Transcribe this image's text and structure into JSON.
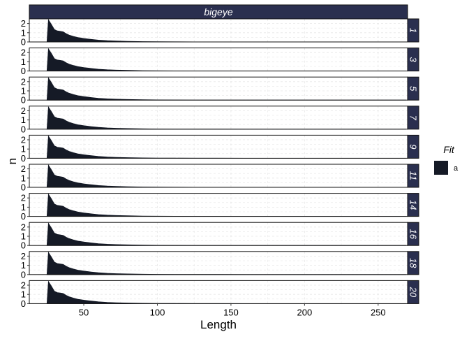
{
  "chart_data": {
    "type": "area",
    "facet_column_label": "bigeye",
    "facet_row_labels": [
      "1",
      "3",
      "5",
      "7",
      "9",
      "11",
      "14",
      "16",
      "18",
      "20"
    ],
    "xlabel": "Length",
    "ylabel": "n",
    "xlim": [
      13,
      270
    ],
    "ylim": [
      0,
      2.5
    ],
    "x_ticks": [
      50,
      100,
      150,
      200,
      250
    ],
    "y_ticks": [
      0,
      1,
      2
    ],
    "grid": true,
    "legend": {
      "title": "Fit",
      "entries": [
        "a"
      ],
      "position": "right"
    },
    "series": [
      {
        "name": "a",
        "x": [
          25,
          26,
          28,
          30,
          32,
          34,
          36,
          38,
          40,
          43,
          46,
          50,
          55,
          60,
          66,
          72,
          80,
          90,
          100,
          112,
          125,
          140,
          160,
          180,
          200,
          230,
          269
        ],
        "y": [
          0,
          2.4,
          1.9,
          1.35,
          1.2,
          1.15,
          1.1,
          0.9,
          0.75,
          0.6,
          0.48,
          0.38,
          0.28,
          0.2,
          0.14,
          0.1,
          0.065,
          0.04,
          0.025,
          0.015,
          0.008,
          0.004,
          0.002,
          0.001,
          0.0005,
          0.0002,
          0
        ]
      }
    ],
    "colors": {
      "fill": "#151a26",
      "strip_bg": "#2a2f4f",
      "strip_text": "#ffffff",
      "grid": "#e6e6e6"
    }
  }
}
